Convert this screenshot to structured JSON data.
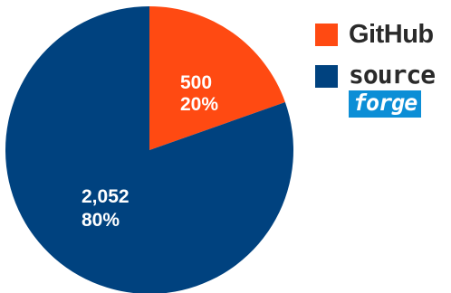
{
  "chart_data": {
    "type": "pie",
    "slices": [
      {
        "name": "GitHub",
        "value": 500,
        "value_label": "500",
        "percent_label": "20%",
        "color": "#ff4a12"
      },
      {
        "name": "SourceForge",
        "value": 2052,
        "value_label": "2,052",
        "percent_label": "80%",
        "color": "#00427f"
      }
    ],
    "start_angle_deg": 0,
    "direction": "clockwise",
    "legend_position": "right"
  },
  "legend": {
    "github": {
      "text": "GitHub",
      "color": "#ff4a12"
    },
    "sourceforge": {
      "text_top": "source",
      "text_bottom": "forge",
      "color": "#00427f"
    }
  }
}
